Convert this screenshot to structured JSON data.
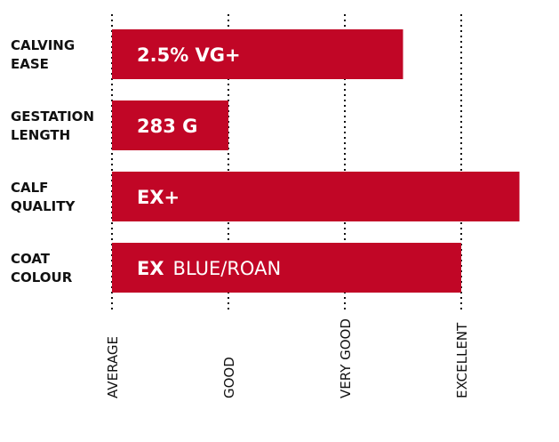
{
  "chart_data": {
    "type": "bar",
    "orientation": "horizontal",
    "categories": [
      [
        "CALVING",
        "EASE"
      ],
      [
        "GESTATION",
        "LENGTH"
      ],
      [
        "CALF",
        "QUALITY"
      ],
      [
        "COAT",
        "COLOUR"
      ]
    ],
    "values": [
      2.5,
      1.0,
      3.5,
      3.0
    ],
    "bar_labels": [
      {
        "strong": "2.5% VG+",
        "light": ""
      },
      {
        "strong": "283 G",
        "light": ""
      },
      {
        "strong": "EX+",
        "light": ""
      },
      {
        "strong": "EX",
        "light": "BLUE/ROAN"
      }
    ],
    "x_ticks": [
      "AVERAGE",
      "GOOD",
      "VERY GOOD",
      "EXCELLENT"
    ],
    "xlim": [
      0,
      3.5
    ],
    "grid": true,
    "title": "",
    "xlabel": "",
    "ylabel": ""
  },
  "colors": {
    "bar": "#c10626",
    "text": "#111111",
    "bar_text": "#ffffff"
  }
}
